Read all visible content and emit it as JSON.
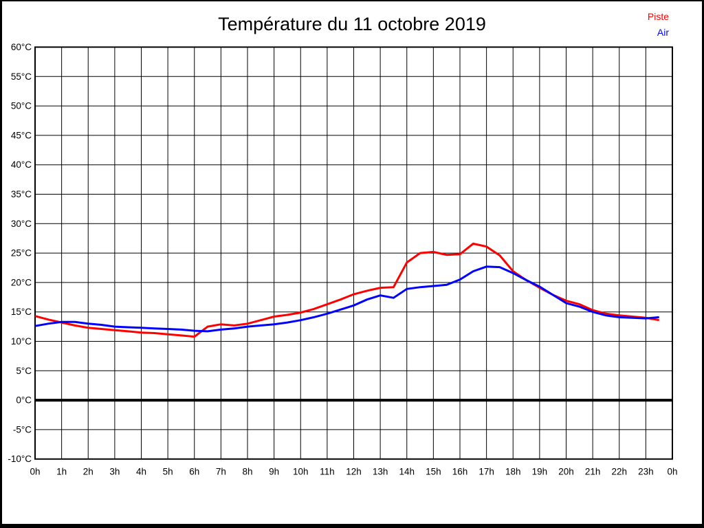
{
  "page": {
    "title": "Température du 11 octobre 2019"
  },
  "legend": {
    "items": [
      {
        "label": "Piste",
        "color": "#ff0000"
      },
      {
        "label": "Air",
        "color": "#0000ff"
      }
    ]
  },
  "chart_data": {
    "type": "line",
    "title": "Température du 11 octobre 2019",
    "xlabel": "",
    "ylabel": "",
    "xlim": [
      0,
      24
    ],
    "ylim": [
      -10,
      60
    ],
    "grid": true,
    "legend_position": "top-right",
    "x": [
      0,
      0.5,
      1,
      1.5,
      2,
      2.5,
      3,
      3.5,
      4,
      4.5,
      5,
      5.5,
      6,
      6.5,
      7,
      7.5,
      8,
      8.5,
      9,
      9.5,
      10,
      10.5,
      11,
      11.5,
      12,
      12.5,
      13,
      13.5,
      14,
      14.5,
      15,
      15.5,
      16,
      16.5,
      17,
      17.5,
      18,
      18.5,
      19,
      19.5,
      20,
      20.5,
      21,
      21.5,
      22,
      22.5,
      23,
      23.5
    ],
    "series": [
      {
        "name": "Piste",
        "color": "#ff0000",
        "values": [
          14.3,
          13.7,
          13.2,
          12.7,
          12.3,
          12.1,
          11.9,
          11.7,
          11.5,
          11.4,
          11.2,
          11.0,
          10.8,
          12.5,
          12.9,
          12.7,
          13.0,
          13.6,
          14.2,
          14.5,
          14.9,
          15.5,
          16.3,
          17.1,
          18.0,
          18.6,
          19.1,
          19.2,
          23.4,
          25.0,
          25.2,
          24.7,
          24.8,
          26.6,
          26.1,
          24.6,
          21.9,
          20.4,
          19.1,
          17.9,
          16.9,
          16.3,
          15.3,
          14.7,
          14.4,
          14.2,
          14.0,
          13.6
        ]
      },
      {
        "name": "Air",
        "color": "#0000ff",
        "values": [
          12.6,
          13.0,
          13.3,
          13.3,
          13.0,
          12.8,
          12.5,
          12.4,
          12.3,
          12.2,
          12.1,
          12.0,
          11.8,
          11.7,
          12.0,
          12.2,
          12.5,
          12.7,
          12.9,
          13.2,
          13.6,
          14.1,
          14.7,
          15.4,
          16.1,
          17.1,
          17.8,
          17.4,
          18.9,
          19.2,
          19.4,
          19.6,
          20.5,
          21.9,
          22.7,
          22.6,
          21.6,
          20.4,
          19.3,
          17.9,
          16.5,
          15.9,
          15.0,
          14.4,
          14.1,
          14.0,
          13.9,
          14.1
        ]
      }
    ],
    "yticks": [
      {
        "v": 60,
        "label": "60°C"
      },
      {
        "v": 55,
        "label": "55°C"
      },
      {
        "v": 50,
        "label": "50°C"
      },
      {
        "v": 45,
        "label": "45°C"
      },
      {
        "v": 40,
        "label": "40°C"
      },
      {
        "v": 35,
        "label": "35°C"
      },
      {
        "v": 30,
        "label": "30°C"
      },
      {
        "v": 25,
        "label": "25°C"
      },
      {
        "v": 20,
        "label": "20°C"
      },
      {
        "v": 15,
        "label": "15°C"
      },
      {
        "v": 10,
        "label": "10°C"
      },
      {
        "v": 5,
        "label": "5°C"
      },
      {
        "v": 0,
        "label": "0°C"
      },
      {
        "v": -5,
        "label": "-5°C"
      },
      {
        "v": -10,
        "label": "-10°C"
      }
    ],
    "xticks": [
      {
        "v": 0,
        "label": "0h"
      },
      {
        "v": 1,
        "label": "1h"
      },
      {
        "v": 2,
        "label": "2h"
      },
      {
        "v": 3,
        "label": "3h"
      },
      {
        "v": 4,
        "label": "4h"
      },
      {
        "v": 5,
        "label": "5h"
      },
      {
        "v": 6,
        "label": "6h"
      },
      {
        "v": 7,
        "label": "7h"
      },
      {
        "v": 8,
        "label": "8h"
      },
      {
        "v": 9,
        "label": "9h"
      },
      {
        "v": 10,
        "label": "10h"
      },
      {
        "v": 11,
        "label": "11h"
      },
      {
        "v": 12,
        "label": "12h"
      },
      {
        "v": 13,
        "label": "13h"
      },
      {
        "v": 14,
        "label": "14h"
      },
      {
        "v": 15,
        "label": "15h"
      },
      {
        "v": 16,
        "label": "16h"
      },
      {
        "v": 17,
        "label": "17h"
      },
      {
        "v": 18,
        "label": "18h"
      },
      {
        "v": 19,
        "label": "19h"
      },
      {
        "v": 20,
        "label": "20h"
      },
      {
        "v": 21,
        "label": "21h"
      },
      {
        "v": 22,
        "label": "22h"
      },
      {
        "v": 23,
        "label": "23h"
      },
      {
        "v": 24,
        "label": "0h"
      }
    ],
    "zero_line": {
      "v": 0,
      "width": 4,
      "color": "#000000"
    }
  },
  "colors": {
    "background": "#ffffff",
    "frame": "#000000",
    "grid": "#000000"
  }
}
